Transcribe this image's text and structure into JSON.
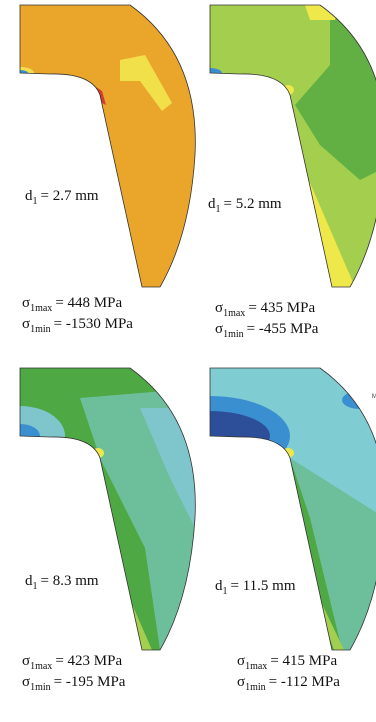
{
  "panels": [
    {
      "diameter": {
        "symbol": "d",
        "subscript": "1",
        "text": "= 2.7 mm"
      },
      "sigma_max": {
        "symbol": "σ",
        "subscript": "1max",
        "text": "= 448 MPa"
      },
      "sigma_min": {
        "symbol": "σ",
        "subscript": "1min",
        "text": "= -1530 MPa"
      }
    },
    {
      "diameter": {
        "symbol": "d",
        "subscript": "1",
        "text": "= 5.2 mm"
      },
      "sigma_max": {
        "symbol": "σ",
        "subscript": "1max",
        "text": "= 435 MPa"
      },
      "sigma_min": {
        "symbol": "σ",
        "subscript": "1min",
        "text": "= -455 MPa"
      }
    },
    {
      "diameter": {
        "symbol": "d",
        "subscript": "1",
        "text": "= 8.3 mm"
      },
      "sigma_max": {
        "symbol": "σ",
        "subscript": "1max",
        "text": "= 423 MPa"
      },
      "sigma_min": {
        "symbol": "σ",
        "subscript": "1min",
        "text": "= -195 MPa"
      }
    },
    {
      "diameter": {
        "symbol": "d",
        "subscript": "1",
        "text": "= 11.5 mm"
      },
      "sigma_max": {
        "symbol": "σ",
        "subscript": "1max",
        "text": "= 415 MPa"
      },
      "sigma_min": {
        "symbol": "σ",
        "subscript": "1min",
        "text": "= -112 MPa"
      },
      "marker": "MN"
    }
  ]
}
